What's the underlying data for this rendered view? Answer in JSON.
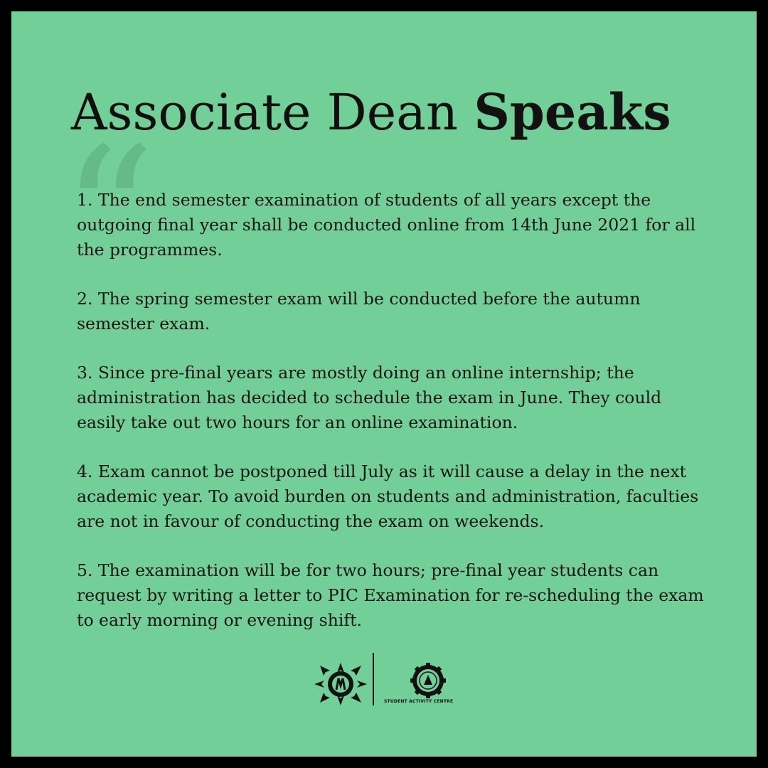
{
  "title": {
    "main": "Associate Dean",
    "accent": "Speaks"
  },
  "quote_icon": "opening-quote-icon",
  "points": [
    "1. The end semester examination of students of all years except the outgoing final year shall be conducted online from 14th June 2021 for all the programmes.",
    "2. The spring semester exam will be conducted before the autumn semester exam.",
    "3. Since pre-final years are mostly doing an online internship; the administration has decided to schedule the exam in June. They could easily take out two hours for an online examination.",
    "4. Exam cannot be postponed till July as it will cause a delay in the next academic year. To avoid burden on students and administration, faculties are not in favour of conducting the exam on weekends.",
    "5. The examination will be for two hours; pre-final year students can request by writing a letter to PIC Examination for re-scheduling the exam to early morning or evening shift."
  ],
  "footer": {
    "left_logo": "star-emblem-logo",
    "right_logo": "gear-emblem-logo",
    "right_logo_caption": "STUDENT ACTIVITY CENTRE"
  },
  "colors": {
    "background": "#72cf97",
    "border": "#000000",
    "text": "#141414",
    "quote": "#64b884"
  }
}
